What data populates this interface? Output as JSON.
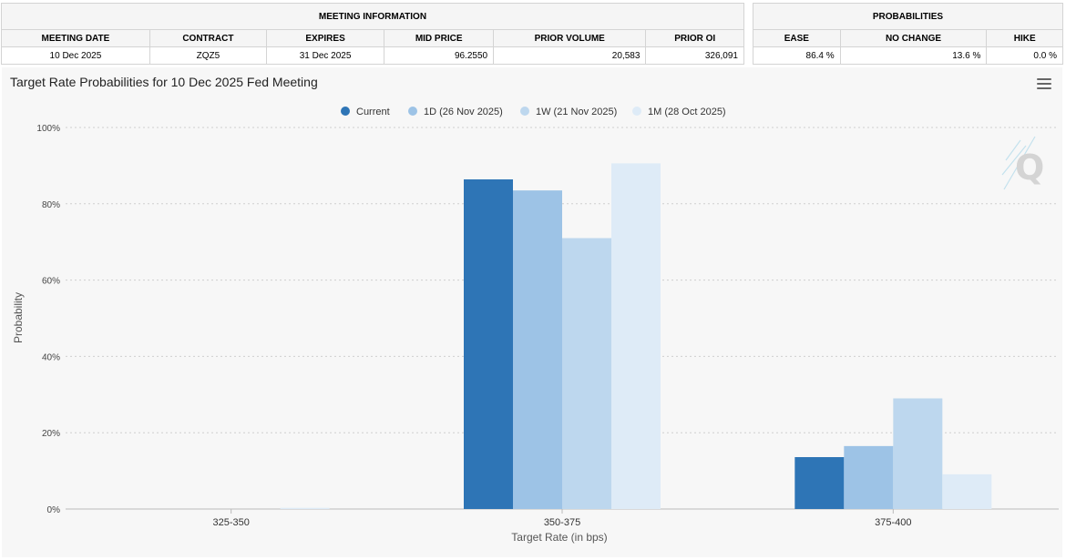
{
  "meeting_info": {
    "title": "MEETING INFORMATION",
    "headers": [
      "MEETING DATE",
      "CONTRACT",
      "EXPIRES",
      "MID PRICE",
      "PRIOR VOLUME",
      "PRIOR OI"
    ],
    "row": [
      "10 Dec 2025",
      "ZQZ5",
      "31 Dec 2025",
      "96.2550",
      "20,583",
      "326,091"
    ]
  },
  "probabilities": {
    "title": "PROBABILITIES",
    "headers": [
      "EASE",
      "NO CHANGE",
      "HIKE"
    ],
    "row": [
      "86.4 %",
      "13.6 %",
      "0.0 %"
    ]
  },
  "chart_data": {
    "type": "bar",
    "title": "Target Rate Probabilities for 10 Dec 2025 Fed Meeting",
    "xlabel": "Target Rate (in bps)",
    "ylabel": "Probability",
    "categories": [
      "325-350",
      "350-375",
      "375-400"
    ],
    "series": [
      {
        "name": "Current",
        "color": "#2e75b6",
        "values": [
          0.0,
          86.4,
          13.6
        ]
      },
      {
        "name": "1D (26 Nov 2025)",
        "color": "#9dc3e6",
        "values": [
          0.0,
          83.5,
          16.5
        ]
      },
      {
        "name": "1W (21 Nov 2025)",
        "color": "#bdd7ee",
        "values": [
          0.0,
          71.0,
          29.0
        ]
      },
      {
        "name": "1M (28 Oct 2025)",
        "color": "#deebf7",
        "values": [
          0.3,
          90.6,
          9.1
        ]
      }
    ],
    "yticks": [
      "0%",
      "20%",
      "40%",
      "60%",
      "80%",
      "100%"
    ],
    "ylim": [
      0,
      100
    ],
    "grid": true,
    "legend": "top-center"
  }
}
